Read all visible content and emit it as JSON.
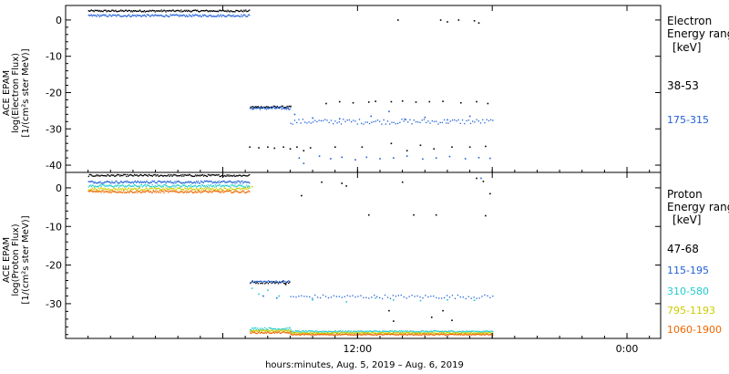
{
  "chart_data": [
    {
      "type": "scatter",
      "panel": "electron",
      "ylabel_lines": [
        "ACE EPAM",
        "log(Electron Flux)",
        "[1/(cm²s ster MeV)]"
      ],
      "ylim": [
        -42,
        4
      ],
      "yticks": [
        0,
        -10,
        -20,
        -30,
        -40
      ],
      "legend_title_lines": [
        "Electron",
        "Energy ranges",
        "[keV]"
      ],
      "series": [
        {
          "name": "38-53",
          "color": "#000000",
          "segments": [
            {
              "x": [
                0,
                7.2
              ],
              "y": 2.5,
              "jitter": 0.25,
              "step": 0.04
            },
            {
              "x": [
                7.2,
                9.0
              ],
              "y": -24.0,
              "jitter": 0.3,
              "step": 0.04
            },
            {
              "x": [
                0,
                0
              ],
              "y": 0,
              "jitter": 0,
              "step": 1
            }
          ],
          "points": [
            [
              7.2,
              -35
            ],
            [
              7.6,
              -35.2
            ],
            [
              8.0,
              -35
            ],
            [
              8.3,
              -35.3
            ],
            [
              8.7,
              -35
            ],
            [
              9.0,
              -35.5
            ],
            [
              9.3,
              -35
            ],
            [
              9.6,
              -36
            ],
            [
              9.9,
              -35.2
            ],
            [
              10.6,
              -23
            ],
            [
              11.2,
              -22.5
            ],
            [
              11.8,
              -22.8
            ],
            [
              12.5,
              -22.6
            ],
            [
              12.8,
              -22.4
            ],
            [
              13.5,
              -22.5
            ],
            [
              14.0,
              -22.3
            ],
            [
              14.6,
              -22.6
            ],
            [
              15.2,
              -22.5
            ],
            [
              15.8,
              -22.4
            ],
            [
              16.6,
              -22.8
            ],
            [
              17.3,
              -22.5
            ],
            [
              17.8,
              -23
            ],
            [
              11.0,
              -35
            ],
            [
              12.2,
              -35
            ],
            [
              13.5,
              -34
            ],
            [
              14.2,
              -36
            ],
            [
              14.8,
              -34.5
            ],
            [
              15.4,
              -35.5
            ],
            [
              16.2,
              -35
            ],
            [
              17.0,
              -35
            ],
            [
              17.7,
              -34.8
            ],
            [
              13.8,
              0
            ],
            [
              15.7,
              0
            ],
            [
              16.0,
              -0.5
            ],
            [
              16.5,
              0
            ],
            [
              17.2,
              -0.2
            ],
            [
              17.4,
              -0.8
            ]
          ]
        },
        {
          "name": "175-315",
          "color": "#1f5fd6",
          "segments": [
            {
              "x": [
                0,
                7.2
              ],
              "y": 1.2,
              "jitter": 0.3,
              "step": 0.04
            },
            {
              "x": [
                7.2,
                9.0
              ],
              "y": -24.3,
              "jitter": 0.4,
              "step": 0.04
            },
            {
              "x": [
                9.0,
                18.0
              ],
              "y": -28.0,
              "jitter": 0.7,
              "step": 0.09
            }
          ],
          "points": [
            [
              9.4,
              -38
            ],
            [
              9.6,
              -39.5
            ],
            [
              10.3,
              -37.5
            ],
            [
              10.8,
              -38.2
            ],
            [
              11.3,
              -37.8
            ],
            [
              11.9,
              -38.5
            ],
            [
              12.4,
              -37.8
            ],
            [
              13.0,
              -38.2
            ],
            [
              13.6,
              -38
            ],
            [
              14.2,
              -37.5
            ],
            [
              14.9,
              -38.3
            ],
            [
              15.5,
              -38
            ],
            [
              16.1,
              -37.6
            ],
            [
              16.8,
              -38.2
            ],
            [
              17.4,
              -37.9
            ],
            [
              17.9,
              -38.1
            ],
            [
              9.2,
              -26
            ],
            [
              10.0,
              -27
            ],
            [
              11.2,
              -27.2
            ],
            [
              12.6,
              -26.5
            ],
            [
              13.4,
              -25.2
            ],
            [
              14.1,
              -27.3
            ],
            [
              15.0,
              -26.8
            ],
            [
              16.0,
              -27.5
            ],
            [
              17.0,
              -26.5
            ]
          ]
        }
      ]
    },
    {
      "type": "scatter",
      "panel": "proton",
      "ylabel_lines": [
        "ACE EPAM",
        "log(Proton Flux)",
        "[1/(cm²s ster MeV)]"
      ],
      "ylim": [
        -39,
        4
      ],
      "yticks": [
        0,
        -10,
        -20,
        -30
      ],
      "legend_title_lines": [
        "Proton",
        "Energy ranges",
        "[keV]"
      ],
      "series": [
        {
          "name": "47-68",
          "color": "#000000",
          "segments": [
            {
              "x": [
                0,
                7.2
              ],
              "y": 3.2,
              "jitter": 0.25,
              "step": 0.04
            },
            {
              "x": [
                7.2,
                9.0
              ],
              "y": -24.5,
              "jitter": 0.3,
              "step": 0.05
            }
          ],
          "points": [
            [
              8.8,
              -25
            ],
            [
              10.4,
              1.5
            ],
            [
              11.3,
              1.2
            ],
            [
              13.4,
              -31.8
            ],
            [
              13.6,
              -34.5
            ],
            [
              14.0,
              1.5
            ],
            [
              15.3,
              -33.5
            ],
            [
              15.8,
              -31.8
            ],
            [
              16.2,
              -34.3
            ],
            [
              17.3,
              2.5
            ],
            [
              17.6,
              1.7
            ],
            [
              17.9,
              -1.5
            ],
            [
              17.7,
              -7.2
            ],
            [
              11.5,
              0.5
            ],
            [
              12.5,
              -7
            ],
            [
              14.5,
              -7
            ],
            [
              15.5,
              -7
            ],
            [
              9.5,
              -2
            ]
          ]
        },
        {
          "name": "115-195",
          "color": "#1f5fd6",
          "segments": [
            {
              "x": [
                0,
                7.2
              ],
              "y": 1.5,
              "jitter": 0.3,
              "step": 0.04
            },
            {
              "x": [
                7.2,
                9.0
              ],
              "y": -24.3,
              "jitter": 0.3,
              "step": 0.05
            },
            {
              "x": [
                9.0,
                18.0
              ],
              "y": -28.2,
              "jitter": 0.5,
              "step": 0.12
            }
          ],
          "points": [
            [
              7.8,
              -28
            ],
            [
              8.4,
              -28.5
            ],
            [
              17.5,
              2.5
            ]
          ]
        },
        {
          "name": "310-580",
          "color": "#22cccc",
          "segments": [
            {
              "x": [
                0,
                7.2
              ],
              "y": 0.5,
              "jitter": 0.3,
              "step": 0.04
            },
            {
              "x": [
                7.2,
                9.0
              ],
              "y": -36.5,
              "jitter": 0.3,
              "step": 0.04
            },
            {
              "x": [
                9.0,
                18.0
              ],
              "y": -37.2,
              "jitter": 0.2,
              "step": 0.04
            }
          ],
          "points": [
            [
              7.3,
              -26
            ],
            [
              7.6,
              -27.5
            ],
            [
              8.0,
              -26.5
            ],
            [
              8.5,
              -28
            ],
            [
              10.0,
              -29
            ],
            [
              11.5,
              -29.5
            ],
            [
              12.8,
              -28.5
            ],
            [
              13.6,
              -29
            ],
            [
              14.8,
              -29.2
            ],
            [
              16.0,
              -29
            ],
            [
              17.2,
              -29.1
            ]
          ]
        },
        {
          "name": "795-1193",
          "color": "#cccc00",
          "segments": [
            {
              "x": [
                0,
                7.2
              ],
              "y": -0.3,
              "jitter": 0.3,
              "step": 0.04
            },
            {
              "x": [
                7.2,
                9.0
              ],
              "y": -37.0,
              "jitter": 0.2,
              "step": 0.04
            },
            {
              "x": [
                9.0,
                18.0
              ],
              "y": -37.6,
              "jitter": 0.15,
              "step": 0.04
            }
          ],
          "points": [
            [
              7.3,
              0.3
            ]
          ]
        },
        {
          "name": "1060-1900",
          "color": "#ee6600",
          "segments": [
            {
              "x": [
                0,
                7.2
              ],
              "y": -1.0,
              "jitter": 0.3,
              "step": 0.04
            },
            {
              "x": [
                7.2,
                9.0
              ],
              "y": -37.5,
              "jitter": 0.2,
              "step": 0.04
            },
            {
              "x": [
                9.0,
                18.0
              ],
              "y": -38.0,
              "jitter": 0.15,
              "step": 0.04
            }
          ],
          "points": []
        }
      ]
    }
  ],
  "x_axis": {
    "range_hours": [
      -1.0,
      25.5
    ],
    "ticks": [
      {
        "hour": 6,
        "label": ""
      },
      {
        "hour": 12,
        "label": "12:00"
      },
      {
        "hour": 18,
        "label": ""
      },
      {
        "hour": 24,
        "label": "0:00"
      },
      {
        "hour": 30,
        "label": ""
      }
    ],
    "label": "hours:minutes, Aug.  5, 2019 – Aug.  6, 2019"
  }
}
